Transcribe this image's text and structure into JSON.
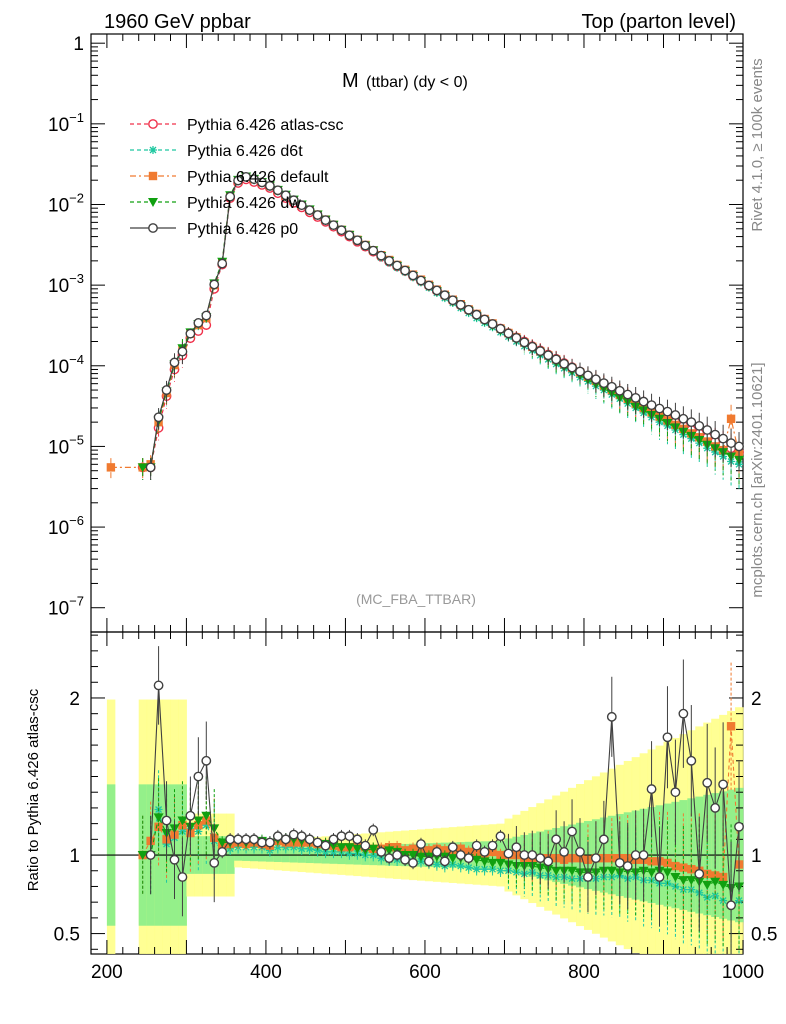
{
  "header": {
    "left": "1960 GeV ppbar",
    "right": "Top (parton level)"
  },
  "side_labels": {
    "rivet": "Rivet 4.1.0, ≥ 100k events",
    "mcplots": "mcplots.cern.ch [arXiv:2401.10621]"
  },
  "chart_data": [
    {
      "type": "line",
      "title": "M (ttbar) (dy < 0)",
      "title_main": "M",
      "title_sub": "(ttbar) (dy < 0)",
      "watermark": "(MC_FBA_TTBAR)",
      "yscale": "log",
      "xlim": [
        180,
        1000
      ],
      "ylim": [
        5e-08,
        1.3
      ],
      "yticks": [
        {
          "value": 1,
          "base": "1",
          "exp": ""
        },
        {
          "value": 0.1,
          "base": "10",
          "exp": "−1"
        },
        {
          "value": 0.01,
          "base": "10",
          "exp": "−2"
        },
        {
          "value": 0.001,
          "base": "10",
          "exp": "−3"
        },
        {
          "value": 0.0001,
          "base": "10",
          "exp": "−4"
        },
        {
          "value": 1e-05,
          "base": "10",
          "exp": "−5"
        },
        {
          "value": 1e-06,
          "base": "10",
          "exp": "−6"
        },
        {
          "value": 1e-07,
          "base": "10",
          "exp": "−7"
        }
      ],
      "legend_position": "top-left",
      "x": [
        205,
        245,
        255,
        265,
        275,
        285,
        295,
        305,
        315,
        325,
        335,
        345,
        355,
        365,
        375,
        385,
        395,
        405,
        415,
        425,
        435,
        445,
        455,
        465,
        475,
        485,
        495,
        505,
        515,
        525,
        535,
        545,
        555,
        565,
        575,
        585,
        595,
        605,
        615,
        625,
        635,
        645,
        655,
        665,
        675,
        685,
        695,
        705,
        715,
        725,
        735,
        745,
        755,
        765,
        775,
        785,
        795,
        805,
        815,
        825,
        835,
        845,
        855,
        865,
        875,
        885,
        895,
        905,
        915,
        925,
        935,
        945,
        955,
        965,
        975,
        985,
        995
      ],
      "series": [
        {
          "name": "Pythia 6.426 atlas-csc",
          "color": "#f0304a",
          "marker": "open-circle",
          "dash": "4,3",
          "values": [
            null,
            5.5e-06,
            5.5e-06,
            1.7e-05,
            4.2e-05,
            9e-05,
            0.000135,
            0.00022,
            0.00027,
            0.00032,
            0.0009,
            0.0018,
            0.012,
            0.0185,
            0.0205,
            0.019,
            0.0175,
            0.016,
            0.0138,
            0.012,
            0.0105,
            0.0092,
            0.008,
            0.007,
            0.0061,
            0.0053,
            0.0046,
            0.004,
            0.00345,
            0.003,
            0.0026,
            0.00225,
            0.00195,
            0.0017,
            0.0015,
            0.0013,
            0.00113,
            0.00098,
            0.00085,
            0.00074,
            0.00064,
            0.00056,
            0.00049,
            0.00043,
            0.000375,
            0.00033,
            0.00029,
            0.000255,
            0.000225,
            0.0002,
            0.000175,
            0.000155,
            0.000138,
            0.000122,
            0.000108,
            9.6e-05,
            8.5e-05,
            7.5e-05,
            6.6e-05,
            5.8e-05,
            5.1e-05,
            4.5e-05,
            4e-05,
            3.5e-05,
            3.1e-05,
            2.75e-05,
            2.45e-05,
            2.2e-05,
            2e-05,
            1.8e-05,
            1.6e-05,
            1.45e-05,
            1.3e-05,
            1.15e-05,
            1.05e-05,
            9.5e-06,
            8.5e-06
          ]
        },
        {
          "name": "Pythia 6.426 d6t",
          "color": "#1ec8a0",
          "marker": "star",
          "dash": "4,3",
          "values": [
            null,
            5.5e-06,
            5.5e-06,
            2.2e-05,
            4.5e-05,
            0.0001,
            0.000155,
            0.00026,
            0.00031,
            0.00038,
            0.00098,
            0.00185,
            0.0125,
            0.0195,
            0.0215,
            0.02,
            0.0183,
            0.0165,
            0.0145,
            0.0126,
            0.011,
            0.0096,
            0.0083,
            0.0072,
            0.0062,
            0.0054,
            0.0047,
            0.00405,
            0.0035,
            0.003,
            0.0026,
            0.0022,
            0.0019,
            0.00165,
            0.00145,
            0.00125,
            0.00108,
            0.00093,
            0.0008,
            0.00069,
            0.0006,
            0.00052,
            0.00045,
            0.00039,
            0.00034,
            0.0003,
            0.00026,
            0.00023,
            0.0002,
            0.000175,
            0.000155,
            0.000135,
            0.00012,
            0.000105,
            9.3e-05,
            8.2e-05,
            7.2e-05,
            6.4e-05,
            5.6e-05,
            5e-05,
            4.4e-05,
            3.9e-05,
            3.4e-05,
            3e-05,
            2.6e-05,
            2.3e-05,
            2e-05,
            1.8e-05,
            1.6e-05,
            1.4e-05,
            1.25e-05,
            1.1e-05,
            9.5e-06,
            8.5e-06,
            7.5e-06,
            6.5e-06,
            6e-06
          ]
        },
        {
          "name": "Pythia 6.426 default",
          "color": "#f07a30",
          "marker": "square",
          "dash": "6,3,2,3",
          "values": [
            5.5e-06,
            5.5e-06,
            6e-06,
            2e-05,
            4.6e-05,
            0.000102,
            0.00016,
            0.00025,
            0.00032,
            0.00039,
            0.001,
            0.0019,
            0.0128,
            0.02,
            0.022,
            0.0205,
            0.0188,
            0.017,
            0.015,
            0.013,
            0.0113,
            0.0099,
            0.0086,
            0.0075,
            0.0065,
            0.0056,
            0.00485,
            0.0042,
            0.00365,
            0.00315,
            0.0027,
            0.00235,
            0.00205,
            0.00178,
            0.00155,
            0.00135,
            0.00117,
            0.00101,
            0.00088,
            0.00076,
            0.00066,
            0.00058,
            0.0005,
            0.00044,
            0.00038,
            0.000335,
            0.00029,
            0.000255,
            0.000225,
            0.000195,
            0.000172,
            0.000152,
            0.000135,
            0.00012,
            0.000105,
            9.4e-05,
            8.3e-05,
            7.3e-05,
            6.5e-05,
            5.7e-05,
            5e-05,
            4.4e-05,
            3.9e-05,
            3.4e-05,
            3e-05,
            2.65e-05,
            2.35e-05,
            2.1e-05,
            1.85e-05,
            1.65e-05,
            1.45e-05,
            1.3e-05,
            1.15e-05,
            1e-05,
            9e-06,
            2.2e-05,
            8e-06
          ]
        },
        {
          "name": "Pythia 6.426 dw",
          "color": "#10a010",
          "marker": "down-triangle",
          "dash": "4,3",
          "values": [
            null,
            5.5e-06,
            5.5e-06,
            2.1e-05,
            4.8e-05,
            0.000105,
            0.000165,
            0.00026,
            0.00033,
            0.0004,
            0.00105,
            0.00195,
            0.013,
            0.0202,
            0.0222,
            0.0208,
            0.019,
            0.0172,
            0.0152,
            0.0132,
            0.0115,
            0.01,
            0.0087,
            0.0075,
            0.0065,
            0.0056,
            0.00485,
            0.0042,
            0.0036,
            0.0031,
            0.0027,
            0.0023,
            0.002,
            0.00173,
            0.0015,
            0.0013,
            0.00112,
            0.00097,
            0.00084,
            0.00073,
            0.00063,
            0.00055,
            0.00048,
            0.000415,
            0.00036,
            0.000315,
            0.000275,
            0.00024,
            0.00021,
            0.000185,
            0.000162,
            0.000142,
            0.000125,
            0.00011,
            9.7e-05,
            8.6e-05,
            7.6e-05,
            6.7e-05,
            5.9e-05,
            5.2e-05,
            4.6e-05,
            4e-05,
            3.6e-05,
            3.1e-05,
            2.8e-05,
            2.45e-05,
            2.2e-05,
            1.95e-05,
            1.72e-05,
            1.52e-05,
            1.35e-05,
            1.2e-05,
            1.05e-05,
            9.5e-06,
            8.5e-06,
            7.5e-06,
            6.8e-06
          ]
        },
        {
          "name": "Pythia 6.426 p0",
          "color": "#404040",
          "marker": "open-circle",
          "dash": "",
          "values": [
            null,
            null,
            5.5e-06,
            2.3e-05,
            5e-05,
            0.00011,
            0.00015,
            0.00025,
            0.00034,
            0.00042,
            0.00102,
            0.00185,
            0.0125,
            0.0198,
            0.022,
            0.0206,
            0.0188,
            0.017,
            0.015,
            0.013,
            0.0113,
            0.0098,
            0.0085,
            0.0074,
            0.0064,
            0.00555,
            0.0048,
            0.00415,
            0.0036,
            0.0031,
            0.00268,
            0.00232,
            0.002,
            0.00175,
            0.00152,
            0.00132,
            0.00114,
            0.00099,
            0.00086,
            0.00075,
            0.00065,
            0.00057,
            0.000495,
            0.00043,
            0.000375,
            0.00033,
            0.000288,
            0.000252,
            0.000222,
            0.000195,
            0.000172,
            0.000152,
            0.000135,
            0.00012,
            0.000106,
            9.5e-05,
            8.5e-05,
            7.6e-05,
            6.8e-05,
            6.1e-05,
            5.5e-05,
            4.9e-05,
            4.4e-05,
            4e-05,
            3.6e-05,
            3.25e-05,
            2.95e-05,
            2.7e-05,
            2.45e-05,
            2.2e-05,
            2e-05,
            1.8e-05,
            1.6e-05,
            1.4e-05,
            1.25e-05,
            1.1e-05,
            1e-05
          ]
        }
      ]
    },
    {
      "type": "line",
      "ylabel": "Ratio to Pythia 6.426 atlas-csc",
      "xlim": [
        180,
        1000
      ],
      "ylim": [
        0.37,
        2.42
      ],
      "yticks": [
        0.5,
        1,
        2
      ],
      "ytick_labels": [
        "0.5",
        "1",
        "2"
      ],
      "xticks": [
        200,
        400,
        600,
        800,
        1000
      ],
      "xtick_labels": [
        "200",
        "400",
        "600",
        "800",
        "1000"
      ],
      "reference": 1,
      "series": [
        {
          "name": "d6t",
          "color": "#1ec8a0",
          "marker": "star",
          "values": [
            null,
            1.0,
            1.0,
            1.29,
            1.07,
            1.11,
            1.15,
            1.18,
            1.15,
            1.19,
            1.09,
            1.03,
            1.04,
            1.05,
            1.05,
            1.05,
            1.05,
            1.03,
            1.05,
            1.05,
            1.05,
            1.04,
            1.04,
            1.03,
            1.02,
            1.02,
            1.02,
            1.01,
            1.01,
            1.0,
            1.0,
            0.98,
            0.97,
            0.97,
            0.97,
            0.96,
            0.96,
            0.95,
            0.94,
            0.93,
            0.94,
            0.93,
            0.92,
            0.91,
            0.91,
            0.91,
            0.9,
            0.9,
            0.89,
            0.88,
            0.89,
            0.87,
            0.87,
            0.86,
            0.86,
            0.85,
            0.85,
            0.85,
            0.85,
            0.86,
            0.86,
            0.87,
            0.85,
            0.86,
            0.84,
            0.84,
            0.82,
            0.82,
            0.8,
            0.78,
            0.78,
            0.76,
            0.73,
            0.74,
            0.71,
            0.68,
            0.71
          ]
        },
        {
          "name": "default",
          "color": "#f07a30",
          "marker": "square",
          "values": [
            null,
            1.0,
            1.09,
            1.18,
            1.1,
            1.13,
            1.19,
            1.14,
            1.19,
            1.22,
            1.11,
            1.06,
            1.07,
            1.08,
            1.07,
            1.08,
            1.07,
            1.06,
            1.09,
            1.08,
            1.08,
            1.08,
            1.08,
            1.07,
            1.07,
            1.06,
            1.05,
            1.05,
            1.06,
            1.05,
            1.04,
            1.04,
            1.05,
            1.05,
            1.03,
            1.04,
            1.04,
            1.03,
            1.04,
            1.03,
            1.03,
            1.04,
            1.02,
            1.02,
            1.01,
            1.02,
            1.0,
            1.0,
            1.0,
            0.98,
            0.98,
            0.98,
            0.98,
            0.98,
            0.97,
            0.98,
            0.98,
            0.97,
            0.98,
            0.98,
            0.98,
            0.98,
            0.98,
            0.97,
            0.97,
            0.96,
            0.96,
            0.95,
            0.93,
            0.92,
            0.91,
            0.9,
            0.88,
            0.87,
            0.86,
            1.82,
            0.94
          ]
        },
        {
          "name": "dw",
          "color": "#10a010",
          "marker": "down-triangle",
          "values": [
            null,
            1.0,
            1.0,
            1.24,
            1.14,
            1.17,
            1.22,
            1.18,
            1.22,
            1.25,
            1.17,
            1.08,
            1.08,
            1.09,
            1.08,
            1.09,
            1.09,
            1.08,
            1.1,
            1.1,
            1.1,
            1.09,
            1.09,
            1.07,
            1.07,
            1.06,
            1.05,
            1.05,
            1.04,
            1.03,
            1.04,
            1.02,
            1.03,
            1.02,
            1.0,
            1.0,
            0.99,
            0.99,
            0.99,
            0.99,
            0.98,
            0.98,
            0.98,
            0.97,
            0.96,
            0.95,
            0.95,
            0.94,
            0.93,
            0.93,
            0.93,
            0.92,
            0.91,
            0.9,
            0.9,
            0.9,
            0.89,
            0.89,
            0.89,
            0.9,
            0.9,
            0.89,
            0.9,
            0.89,
            0.9,
            0.89,
            0.9,
            0.89,
            0.86,
            0.84,
            0.84,
            0.83,
            0.81,
            0.83,
            0.81,
            0.79,
            0.8
          ]
        },
        {
          "name": "p0",
          "color": "#404040",
          "marker": "open-circle",
          "values": [
            null,
            null,
            1.0,
            2.08,
            1.22,
            0.97,
            0.86,
            1.25,
            1.5,
            1.6,
            0.95,
            1.02,
            1.1,
            1.1,
            1.1,
            1.1,
            1.08,
            1.08,
            1.12,
            1.1,
            1.13,
            1.12,
            1.1,
            1.08,
            1.06,
            1.1,
            1.12,
            1.12,
            1.1,
            1.06,
            1.16,
            1.02,
            0.98,
            1.0,
            0.97,
            0.95,
            1.07,
            0.96,
            1.02,
            0.96,
            1.05,
            1.0,
            0.98,
            1.06,
            1.02,
            1.06,
            1.12,
            1.01,
            1.05,
            1.0,
            1.0,
            0.98,
            0.96,
            1.1,
            1.02,
            1.15,
            1.02,
            0.86,
            0.98,
            1.1,
            1.88,
            0.95,
            0.93,
            1.0,
            1.0,
            1.42,
            0.86,
            1.75,
            1.4,
            1.9,
            1.6,
            0.88,
            1.46,
            1.3,
            1.45,
            0.68,
            1.18
          ]
        }
      ]
    }
  ]
}
